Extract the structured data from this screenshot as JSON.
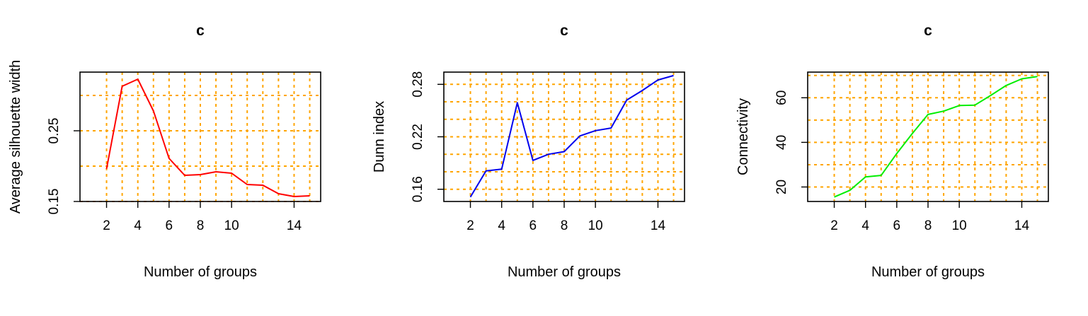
{
  "chart_data": [
    {
      "type": "line",
      "title": "c",
      "xlabel": "Number of groups",
      "ylabel": "Average silhouette width",
      "color": "#FF0000",
      "grid": true,
      "grid_color": "#FFA500",
      "xlim": [
        0.3,
        15.7
      ],
      "ylim": [
        0.15,
        0.333
      ],
      "xticks": [
        2,
        4,
        6,
        8,
        10,
        14
      ],
      "yticks": [
        0.15,
        0.25
      ],
      "xgrid": [
        2,
        3,
        4,
        5,
        6,
        7,
        8,
        9,
        10,
        11,
        12,
        13,
        14,
        15
      ],
      "ygrid": [
        0.15,
        0.2,
        0.25,
        0.3
      ],
      "x": [
        2,
        3,
        4,
        5,
        6,
        7,
        8,
        9,
        10,
        11,
        12,
        13,
        14,
        15
      ],
      "y": [
        0.196,
        0.313,
        0.323,
        0.278,
        0.211,
        0.187,
        0.188,
        0.192,
        0.19,
        0.174,
        0.173,
        0.161,
        0.157,
        0.158
      ]
    },
    {
      "type": "line",
      "title": "c",
      "xlabel": "Number of groups",
      "ylabel": "Dunn index",
      "color": "#0000EE",
      "grid": true,
      "grid_color": "#FFA500",
      "xlim": [
        0.3,
        15.7
      ],
      "ylim": [
        0.146,
        0.294
      ],
      "xticks": [
        2,
        4,
        6,
        8,
        10,
        14
      ],
      "yticks": [
        0.16,
        0.22,
        0.28
      ],
      "xgrid": [
        2,
        3,
        4,
        5,
        6,
        7,
        8,
        9,
        10,
        11,
        12,
        13,
        14,
        15
      ],
      "ygrid": [
        0.16,
        0.18,
        0.2,
        0.22,
        0.24,
        0.26,
        0.28
      ],
      "x": [
        2,
        3,
        4,
        5,
        6,
        7,
        8,
        9,
        10,
        11,
        12,
        13,
        14,
        15
      ],
      "y": [
        0.151,
        0.181,
        0.183,
        0.259,
        0.193,
        0.2,
        0.203,
        0.221,
        0.227,
        0.23,
        0.262,
        0.273,
        0.285,
        0.29
      ]
    },
    {
      "type": "line",
      "title": "c",
      "xlabel": "Number of groups",
      "ylabel": "Connectivity",
      "color": "#00EE00",
      "grid": true,
      "grid_color": "#FFA500",
      "xlim": [
        0.3,
        15.7
      ],
      "ylim": [
        13.5,
        71.5
      ],
      "xticks": [
        2,
        4,
        6,
        8,
        10,
        14
      ],
      "yticks": [
        20,
        40,
        60
      ],
      "xgrid": [
        2,
        3,
        4,
        5,
        6,
        7,
        8,
        9,
        10,
        11,
        12,
        13,
        14,
        15
      ],
      "ygrid": [
        20,
        30,
        40,
        50,
        60,
        70
      ],
      "x": [
        2,
        3,
        4,
        5,
        6,
        7,
        8,
        9,
        10,
        11,
        12,
        13,
        14,
        15
      ],
      "y": [
        15.5,
        18.5,
        24.5,
        25.2,
        35,
        44,
        52.5,
        54,
        56.5,
        56.7,
        61,
        65.5,
        68.5,
        69.5
      ]
    }
  ]
}
